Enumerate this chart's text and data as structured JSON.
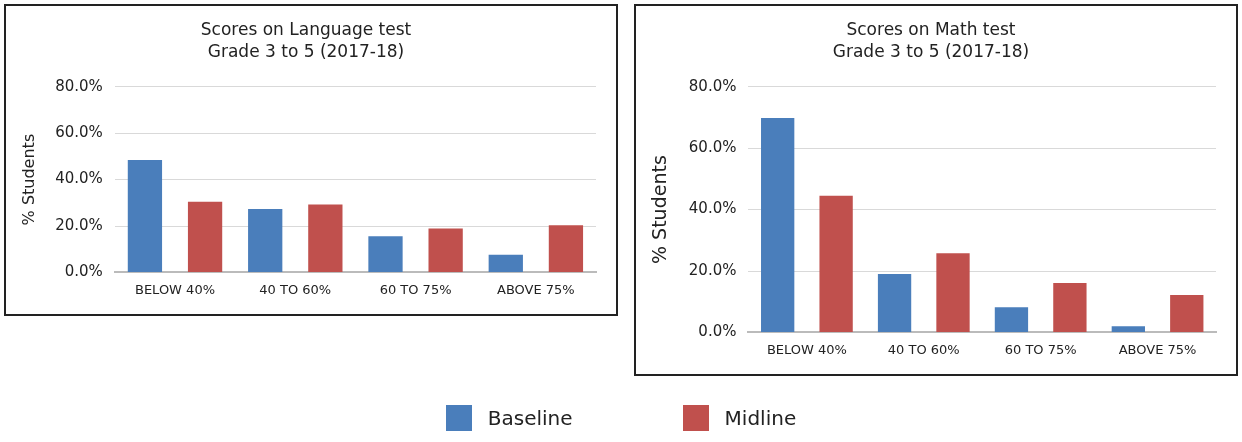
{
  "chart_data": [
    {
      "type": "bar",
      "title": "Scores on Language test",
      "subtitle": "Grade 3 to 5 (2017-18)",
      "ylabel": "% Students",
      "categories": [
        "BELOW 40%",
        "40 TO 60%",
        "60 TO 75%",
        "ABOVE 75%"
      ],
      "series": [
        {
          "color": "#4a7ebb",
          "values": [
            48.4,
            27.3,
            15.6,
            7.6
          ]
        },
        {
          "color": "#c0504d",
          "values": [
            30.5,
            29.3,
            18.9,
            20.3
          ]
        }
      ],
      "ylim": [
        0,
        80
      ],
      "yticks": [
        {
          "value": 0,
          "label": "0.0%"
        },
        {
          "value": 20,
          "label": "20.0%"
        },
        {
          "value": 40,
          "label": "40.0%"
        },
        {
          "value": 60,
          "label": "60.0%"
        },
        {
          "value": 80,
          "label": "80.0%"
        }
      ],
      "grid": "y"
    },
    {
      "type": "bar",
      "title": "Scores on Math test",
      "subtitle": "Grade 3 to 5 (2017-18)",
      "ylabel": "% Students",
      "categories": [
        "BELOW 40%",
        "40 TO 60%",
        "60 TO 75%",
        "ABOVE 75%"
      ],
      "series": [
        {
          "name": "Baseline",
          "color": "#4a7ebb",
          "values": [
            69.8,
            19.0,
            8.2,
            2.0
          ]
        },
        {
          "name": "Midline",
          "color": "#c0504d",
          "values": [
            44.5,
            25.8,
            16.1,
            12.2
          ]
        }
      ],
      "ylim": [
        0,
        80
      ],
      "yticks": [
        {
          "value": 0,
          "label": "0.0%"
        },
        {
          "value": 20,
          "label": "20.0%"
        },
        {
          "value": 40,
          "label": "40.0%"
        },
        {
          "value": 60,
          "label": "60.0%"
        },
        {
          "value": 80,
          "label": "80.0%"
        }
      ],
      "grid": "y",
      "legend": "bottom"
    }
  ]
}
